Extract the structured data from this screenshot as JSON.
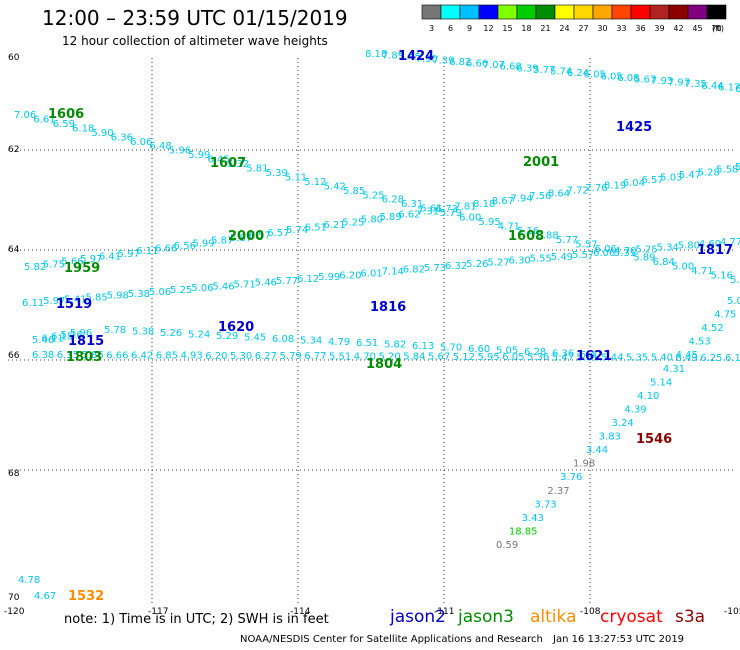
{
  "header": {
    "title": "12:00 – 23:59 UTC 01/15/2019",
    "subtitle": "12 hour collection of altimeter wave heights"
  },
  "color_scale": {
    "labels": [
      "3",
      "6",
      "9",
      "12",
      "15",
      "18",
      "21",
      "24",
      "27",
      "30",
      "33",
      "36",
      "39",
      "42",
      "45",
      "70"
    ],
    "unit": "(ft)",
    "colors": [
      "#777777",
      "#00ffff",
      "#00bfff",
      "#0000ff",
      "#7fff00",
      "#00cd00",
      "#008b00",
      "#ffff00",
      "#ffd700",
      "#ffa500",
      "#ff4500",
      "#ff0000",
      "#b22222",
      "#8b0000",
      "#800080",
      "#000000"
    ]
  },
  "axes": {
    "lon_labels": [
      "-120",
      "-117",
      "-114",
      "-111",
      "-108",
      "-105"
    ],
    "lat_labels": [
      "60",
      "62",
      "64",
      "66",
      "68",
      "70"
    ]
  },
  "passes": [
    {
      "time": "1424",
      "color": "#0000cc"
    },
    {
      "time": "1425",
      "color": "#0000cc"
    },
    {
      "time": "1606",
      "color": "#008b00"
    },
    {
      "time": "1607",
      "color": "#008b00"
    },
    {
      "time": "2001",
      "color": "#008b00"
    },
    {
      "time": "2000",
      "color": "#008b00"
    },
    {
      "time": "1608",
      "color": "#008b00"
    },
    {
      "time": "1959",
      "color": "#008b00"
    },
    {
      "time": "1817",
      "color": "#0000cc"
    },
    {
      "time": "1519",
      "color": "#0000cc"
    },
    {
      "time": "1816",
      "color": "#0000cc"
    },
    {
      "time": "1620",
      "color": "#0000cc"
    },
    {
      "time": "1815",
      "color": "#0000cc"
    },
    {
      "time": "1621",
      "color": "#0000cc"
    },
    {
      "time": "1803",
      "color": "#008b00"
    },
    {
      "time": "1804",
      "color": "#008b00"
    },
    {
      "time": "1546",
      "color": "#8b0000"
    },
    {
      "time": "1532",
      "color": "#ff8c00"
    }
  ],
  "wave_heights": {
    "track_1424": [
      "8.18",
      "7.89",
      "7.45",
      "7.90",
      "7.39",
      "6.82",
      "6.66",
      "7.07",
      "6.68",
      "6.39",
      "5.77",
      "5.74",
      "6.24",
      "6.05",
      "6.05",
      "6.08",
      "5.67",
      "7.93",
      "7.97",
      "7.35",
      "6.44",
      "6.17",
      "6.91"
    ],
    "track_1606": [
      "7.06",
      "6.61",
      "6.59",
      "6.18",
      "5.90",
      "6.36",
      "6.06",
      "6.48",
      "5.96",
      "5.99",
      "6.45",
      "5.32",
      "5.81",
      "5.39",
      "5.11",
      "5.12",
      "5.42",
      "5.85",
      "5.25",
      "6.28",
      "6.31",
      "5.61",
      "5.79",
      "6.00",
      "5.95",
      "4.71",
      "5.16",
      "5.88",
      "5.77",
      "5.57",
      "6.06",
      "5.31",
      "5.89",
      "6.84",
      "5.00",
      "4.71",
      "5.16",
      "5.51"
    ],
    "track_1959": [
      "5.82",
      "5.75",
      "5.66",
      "5.97",
      "6.41",
      "5.97",
      "6.11",
      "6.66",
      "6.56",
      "5.99",
      "5.87",
      "5.87",
      "6.57",
      "6.57",
      "5.74",
      "6.51",
      "6.21",
      "5.25",
      "5.80",
      "5.89",
      "6.62",
      "7.31",
      "6.73",
      "7.81",
      "8.18",
      "8.67",
      "7.94",
      "7.56",
      "8.64",
      "7.72",
      "7.76",
      "8.19",
      "6.04",
      "6.57",
      "5.03",
      "5.47",
      "5.28",
      "5.58",
      "5.96"
    ],
    "track_1817": [
      "4.77",
      "4.60",
      "5.80",
      "5.34",
      "5.25",
      "4.70",
      "6.06",
      "5.57",
      "5.49",
      "5.55",
      "6.30",
      "5.27",
      "5.26",
      "6.32",
      "5.73",
      "6.82",
      "7.14",
      "6.01",
      "6.20",
      "5.99",
      "6.12",
      "5.77",
      "5.46",
      "5.71",
      "5.46",
      "5.06",
      "5.25",
      "5.06",
      "5.38",
      "5.98",
      "5.85",
      "5.41",
      "5.97",
      "6.11"
    ],
    "track_1519": [
      "5.78",
      "5.38",
      "5.26",
      "5.24",
      "5.29",
      "5.45",
      "6.08",
      "5.34",
      "4.79",
      "6.51",
      "5.82",
      "6.13",
      "5.70",
      "6.60",
      "5.05",
      "6.28",
      "6.36",
      "5.47"
    ],
    "track_1815": [
      "5.46",
      "6.11",
      "6.15",
      "5.16",
      "5.96"
    ],
    "track_1803": [
      "6.38",
      "6.35",
      "5.86",
      "6.66",
      "6.42",
      "6.85",
      "4.93",
      "6.20",
      "5.30",
      "6.27",
      "5.79",
      "6.77",
      "5.51",
      "4.70",
      "5.20",
      "5.84",
      "5.67",
      "5.12",
      "5.95",
      "6.05",
      "5.36",
      "5.47",
      "5.81",
      "5.44",
      "5.35",
      "5.40",
      "6.49",
      "6.25",
      "6.17"
    ],
    "track_1546": [
      "5.0",
      "4.75",
      "4.52",
      "4.53",
      "4.45",
      "4.31",
      "5.14",
      "4.10",
      "4.39",
      "3.24",
      "3.83",
      "3.44",
      "1.98",
      "3.76",
      "2.37",
      "3.73",
      "3.43",
      "18.85",
      "0.59"
    ],
    "track_1532": [
      "4.78",
      "4.67"
    ]
  },
  "note": {
    "text": "note:  1) Time is in UTC;  2) SWH is in feet",
    "legend": [
      {
        "name": "jason2",
        "color": "#0000cc"
      },
      {
        "name": "jason3",
        "color": "#008b00"
      },
      {
        "name": "altika",
        "color": "#ff8c00"
      },
      {
        "name": "cryosat",
        "color": "#ff0000"
      },
      {
        "name": "s3a",
        "color": "#8b0000"
      }
    ]
  },
  "credit": {
    "agency": "NOAA/NESDIS Center for Satellite Applications and Research",
    "timestamp": "Jan 16 13:27:53 UTC 2019"
  }
}
